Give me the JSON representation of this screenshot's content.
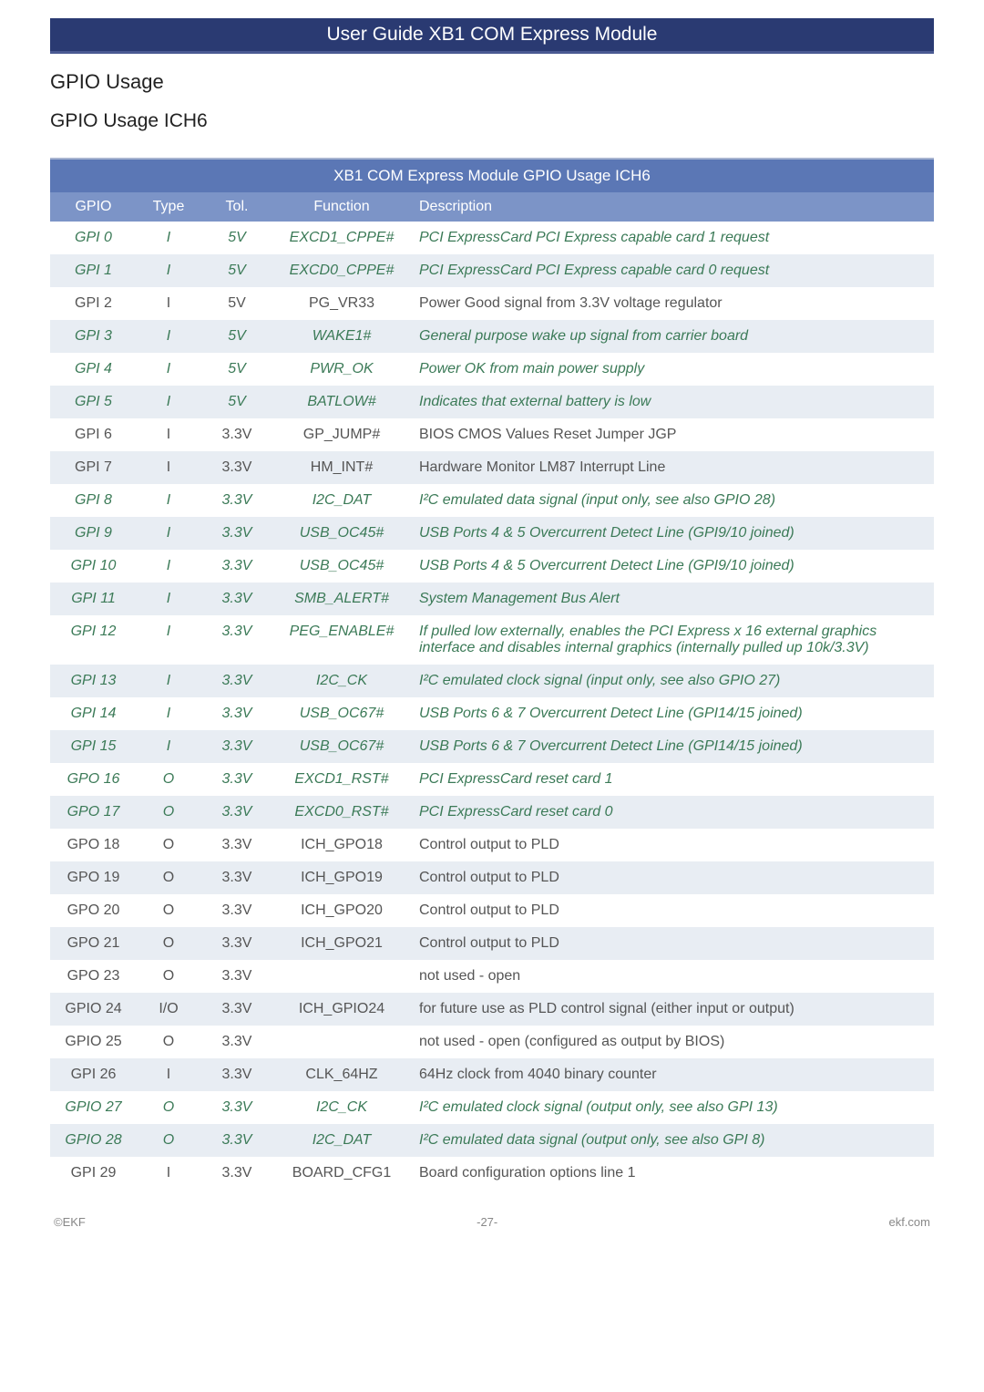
{
  "header": {
    "title": "User Guide XB1 COM Express Module"
  },
  "headings": {
    "h1": "GPIO Usage",
    "h2": "GPIO Usage ICH6"
  },
  "table": {
    "title": "XB1 COM Express Module GPIO Usage ICH6",
    "columns": {
      "gpio": "GPIO",
      "type": "Type",
      "tol": "Tol.",
      "func": "Function",
      "desc": "Description"
    },
    "rows": [
      {
        "gpio": "GPI 0",
        "type": "I",
        "tol": "5V",
        "func": "EXCD1_CPPE#",
        "desc": "PCI ExpressCard PCI Express capable card 1 request",
        "green": true,
        "alt": false
      },
      {
        "gpio": "GPI 1",
        "type": "I",
        "tol": "5V",
        "func": "EXCD0_CPPE#",
        "desc": "PCI ExpressCard PCI Express capable card 0 request",
        "green": true,
        "alt": true
      },
      {
        "gpio": "GPI 2",
        "type": "I",
        "tol": "5V",
        "func": "PG_VR33",
        "desc": "Power Good signal from 3.3V voltage regulator",
        "green": false,
        "alt": false
      },
      {
        "gpio": "GPI 3",
        "type": "I",
        "tol": "5V",
        "func": "WAKE1#",
        "desc": "General purpose wake up signal from carrier board",
        "green": true,
        "alt": true
      },
      {
        "gpio": "GPI 4",
        "type": "I",
        "tol": "5V",
        "func": "PWR_OK",
        "desc": "Power OK from main power supply",
        "green": true,
        "alt": false
      },
      {
        "gpio": "GPI 5",
        "type": "I",
        "tol": "5V",
        "func": "BATLOW#",
        "desc": "Indicates that external battery is low",
        "green": true,
        "alt": true
      },
      {
        "gpio": "GPI 6",
        "type": "I",
        "tol": "3.3V",
        "func": "GP_JUMP#",
        "desc": "BIOS CMOS Values Reset Jumper JGP",
        "green": false,
        "alt": false
      },
      {
        "gpio": "GPI 7",
        "type": "I",
        "tol": "3.3V",
        "func": "HM_INT#",
        "desc": "Hardware Monitor LM87 Interrupt Line",
        "green": false,
        "alt": true
      },
      {
        "gpio": "GPI 8",
        "type": "I",
        "tol": "3.3V",
        "func": "I2C_DAT",
        "desc": "I²C emulated data signal (input only, see also GPIO 28)",
        "green": true,
        "alt": false
      },
      {
        "gpio": "GPI 9",
        "type": "I",
        "tol": "3.3V",
        "func": "USB_OC45#",
        "desc": "USB Ports 4 & 5 Overcurrent Detect Line (GPI9/10 joined)",
        "green": true,
        "alt": true
      },
      {
        "gpio": "GPI 10",
        "type": "I",
        "tol": "3.3V",
        "func": "USB_OC45#",
        "desc": "USB Ports 4 & 5 Overcurrent Detect Line (GPI9/10 joined)",
        "green": true,
        "alt": false
      },
      {
        "gpio": "GPI 11",
        "type": "I",
        "tol": "3.3V",
        "func": "SMB_ALERT#",
        "desc": "System Management Bus Alert",
        "green": true,
        "alt": true
      },
      {
        "gpio": "GPI 12",
        "type": "I",
        "tol": "3.3V",
        "func": "PEG_ENABLE#",
        "desc": "If pulled low externally, enables the PCI Express x 16 external graphics interface and disables internal graphics (internally pulled up 10k/3.3V)",
        "green": true,
        "alt": false
      },
      {
        "gpio": "GPI 13",
        "type": "I",
        "tol": "3.3V",
        "func": "I2C_CK",
        "desc": "I²C emulated clock signal (input only, see also GPIO 27)",
        "green": true,
        "alt": true
      },
      {
        "gpio": "GPI 14",
        "type": "I",
        "tol": "3.3V",
        "func": "USB_OC67#",
        "desc": "USB Ports 6 & 7 Overcurrent Detect Line (GPI14/15 joined)",
        "green": true,
        "alt": false
      },
      {
        "gpio": "GPI 15",
        "type": "I",
        "tol": "3.3V",
        "func": "USB_OC67#",
        "desc": "USB Ports 6 & 7 Overcurrent Detect Line (GPI14/15 joined)",
        "green": true,
        "alt": true
      },
      {
        "gpio": "GPO 16",
        "type": "O",
        "tol": "3.3V",
        "func": "EXCD1_RST#",
        "desc": "PCI ExpressCard reset card 1",
        "green": true,
        "alt": false
      },
      {
        "gpio": "GPO 17",
        "type": "O",
        "tol": "3.3V",
        "func": "EXCD0_RST#",
        "desc": "PCI ExpressCard reset card 0",
        "green": true,
        "alt": true
      },
      {
        "gpio": "GPO 18",
        "type": "O",
        "tol": "3.3V",
        "func": "ICH_GPO18",
        "desc": "Control output to PLD",
        "green": false,
        "alt": false
      },
      {
        "gpio": "GPO 19",
        "type": "O",
        "tol": "3.3V",
        "func": "ICH_GPO19",
        "desc": "Control output to PLD",
        "green": false,
        "alt": true
      },
      {
        "gpio": "GPO 20",
        "type": "O",
        "tol": "3.3V",
        "func": "ICH_GPO20",
        "desc": "Control output to PLD",
        "green": false,
        "alt": false
      },
      {
        "gpio": "GPO 21",
        "type": "O",
        "tol": "3.3V",
        "func": "ICH_GPO21",
        "desc": "Control output to PLD",
        "green": false,
        "alt": true
      },
      {
        "gpio": "GPO 23",
        "type": "O",
        "tol": "3.3V",
        "func": "",
        "desc": "not used - open",
        "green": false,
        "alt": false
      },
      {
        "gpio": "GPIO 24",
        "type": "I/O",
        "tol": "3.3V",
        "func": "ICH_GPIO24",
        "desc": "for future use as PLD control signal (either input or output)",
        "green": false,
        "alt": true
      },
      {
        "gpio": "GPIO 25",
        "type": "O",
        "tol": "3.3V",
        "func": "",
        "desc": "not used - open (configured as output by BIOS)",
        "green": false,
        "alt": false
      },
      {
        "gpio": "GPI 26",
        "type": "I",
        "tol": "3.3V",
        "func": "CLK_64HZ",
        "desc": "64Hz clock from 4040 binary counter",
        "green": false,
        "alt": true
      },
      {
        "gpio": "GPIO 27",
        "type": "O",
        "tol": "3.3V",
        "func": "I2C_CK",
        "desc": "I²C emulated clock signal (output only, see also GPI 13)",
        "green": true,
        "alt": false
      },
      {
        "gpio": "GPIO 28",
        "type": "O",
        "tol": "3.3V",
        "func": "I2C_DAT",
        "desc": "I²C emulated data signal (output only, see also GPI 8)",
        "green": true,
        "alt": true
      },
      {
        "gpio": "GPI 29",
        "type": "I",
        "tol": "3.3V",
        "func": "BOARD_CFG1",
        "desc": "Board configuration options line 1",
        "green": false,
        "alt": false
      }
    ]
  },
  "footer": {
    "left": "©EKF",
    "center": "-27-",
    "right": "ekf.com"
  },
  "colors": {
    "title_bar_bg": "#2a3a72",
    "table_title_bg": "#5b77b5",
    "header_row_bg": "#7c94c7",
    "alt_row_bg": "#e8edf3",
    "green_text": "#3b7a57",
    "grey_text": "#555555"
  }
}
